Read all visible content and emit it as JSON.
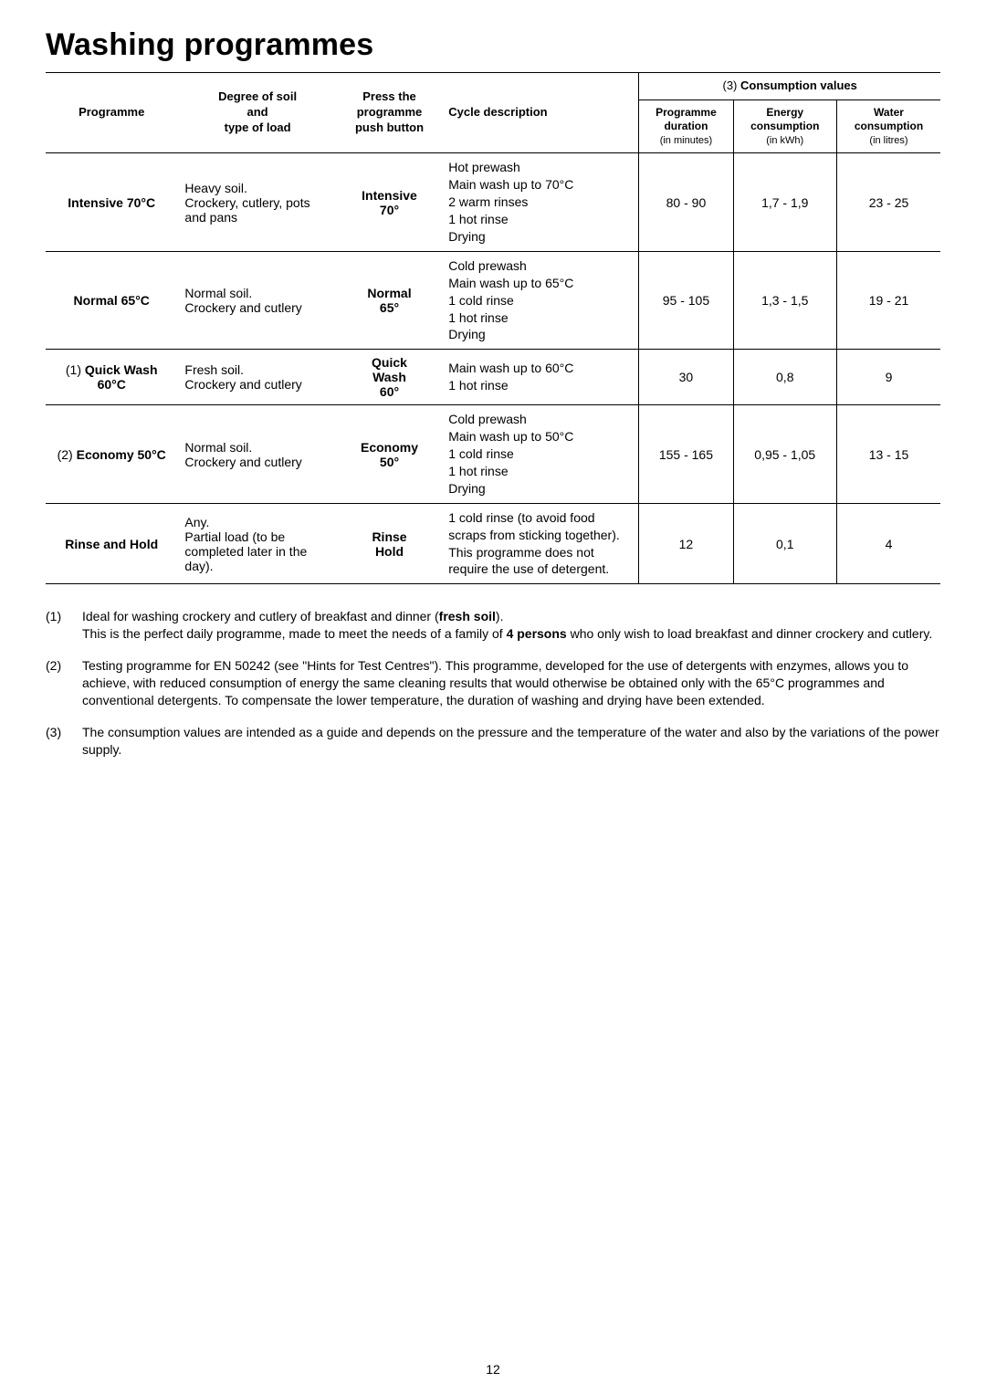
{
  "page": {
    "number": "12",
    "title": "Washing programmes"
  },
  "table": {
    "header": {
      "programme": "Programme",
      "soil_line1": "Degree of soil",
      "soil_line2": "and",
      "soil_line3": "type of load",
      "button_line1": "Press the",
      "button_line2": "programme",
      "button_line3": "push button",
      "cycle": "Cycle description",
      "consumption_prefix": "(3)",
      "consumption_title": "Consumption values",
      "duration_line1": "Programme",
      "duration_line2": "duration",
      "duration_unit": "(in minutes)",
      "energy_line1": "Energy",
      "energy_line2": "consumption",
      "energy_unit": "(in kWh)",
      "water_line1": "Water",
      "water_line2": "consumption",
      "water_unit": "(in litres)"
    },
    "rows": [
      {
        "prefix": "",
        "name": "Intensive 70°C",
        "soil": "Heavy soil.\nCrockery, cutlery, pots and pans",
        "button": "Intensive\n70°",
        "cycle": "Hot prewash\nMain wash up to 70°C\n2 warm rinses\n1 hot rinse\nDrying",
        "duration": "80 - 90",
        "energy": "1,7 - 1,9",
        "water": "23 - 25"
      },
      {
        "prefix": "",
        "name": "Normal 65°C",
        "soil": "Normal soil.\nCrockery and cutlery",
        "button": "Normal\n65°",
        "cycle": "Cold prewash\nMain wash up to 65°C\n1 cold rinse\n1 hot rinse\nDrying",
        "duration": "95 - 105",
        "energy": "1,3 - 1,5",
        "water": "19 - 21"
      },
      {
        "prefix": "(1) ",
        "name": "Quick Wash\n60°C",
        "soil": "Fresh soil.\nCrockery and cutlery",
        "button": "Quick\nWash\n60°",
        "cycle": "Main wash up to 60°C\n1 hot rinse",
        "duration": "30",
        "energy": "0,8",
        "water": "9"
      },
      {
        "prefix": "(2) ",
        "name": "Economy 50°C",
        "soil": "Normal soil.\nCrockery and cutlery",
        "button": "Economy\n50°",
        "cycle": "Cold prewash\nMain wash up to 50°C\n1 cold rinse\n1 hot rinse\nDrying",
        "duration": "155 - 165",
        "energy": "0,95 - 1,05",
        "water": "13 - 15"
      },
      {
        "prefix": "",
        "name": "Rinse and Hold",
        "soil": "Any.\nPartial load (to be completed later in the day).",
        "button": "Rinse\nHold",
        "cycle": "1 cold rinse (to avoid food scraps from sticking together).\nThis programme does not require the use of detergent.",
        "duration": "12",
        "energy": "0,1",
        "water": "4"
      }
    ]
  },
  "notes": [
    {
      "num": "(1)",
      "text_pre": "Ideal for washing crockery and cutlery of breakfast and dinner (",
      "bold1": "fresh soil",
      "text_mid1": ").\n This is the perfect daily programme, made to meet the needs of a family of ",
      "bold2": "4 persons",
      "text_post": " who only wish to load breakfast and dinner crockery and cutlery."
    },
    {
      "num": "(2)",
      "text_pre": "Testing programme for EN 50242 (see \"Hints for Test Centres\"). This programme, developed for the use of detergents with enzymes, allows you to achieve, with reduced consumption of energy the same cleaning results that would otherwise be obtained only with the 65°C programmes and conventional detergents. To compensate the lower temperature, the duration of washing and drying have been extended.",
      "bold1": "",
      "text_mid1": "",
      "bold2": "",
      "text_post": ""
    },
    {
      "num": "(3)",
      "text_pre": "The consumption values are intended as a guide and depends on the pressure and the temperature of the water and also by the variations of the power supply.",
      "bold1": "",
      "text_mid1": "",
      "bold2": "",
      "text_post": ""
    }
  ]
}
